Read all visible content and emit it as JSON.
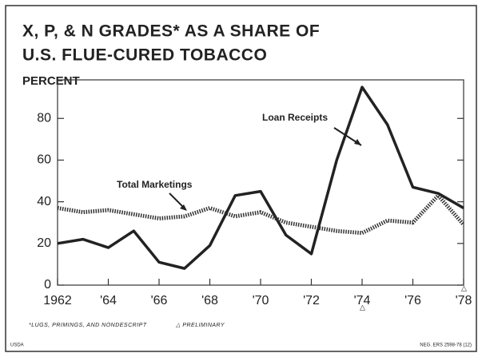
{
  "chart_data": {
    "type": "line",
    "title": [
      "X, P, & N GRADES* AS A SHARE OF",
      "U.S. FLUE-CURED TOBACCO"
    ],
    "y_label": "PERCENT",
    "annotations": [
      "Loan Receipts",
      "Total Marketings"
    ],
    "footnotes": [
      "*LUGS, PRIMINGS, AND NONDESCRIPT",
      "△ PRELIMINARY"
    ],
    "source": "USDA",
    "reference": "NEG. ERS 2598-78 (12)",
    "x": [
      1962,
      1963,
      1964,
      1965,
      1966,
      1967,
      1968,
      1969,
      1970,
      1971,
      1972,
      1973,
      1974,
      1975,
      1976,
      1977,
      1978
    ],
    "series": [
      {
        "name": "Loan Receipts",
        "color": "#222222",
        "style": "solid",
        "values": [
          20,
          22,
          18,
          26,
          11,
          8,
          19,
          43,
          45,
          24,
          15,
          60,
          95,
          77,
          47,
          44,
          37
        ]
      },
      {
        "name": "Total Marketings",
        "color": "#333333",
        "style": "dotted",
        "values": [
          37,
          35,
          36,
          34,
          32,
          33,
          37,
          33,
          35,
          30,
          28,
          26,
          25,
          31,
          30,
          43,
          29
        ]
      }
    ],
    "xlim": [
      1962,
      1978
    ],
    "xticks": [
      1962,
      {
        "value": 1964,
        "label": "'64"
      },
      {
        "value": 1966,
        "label": "'66"
      },
      {
        "value": 1968,
        "label": "'68"
      },
      {
        "value": 1970,
        "label": "'70"
      },
      {
        "value": 1972,
        "label": "'72"
      },
      {
        "value": 1974,
        "label": "'74"
      },
      {
        "value": 1976,
        "label": "'76"
      },
      {
        "value": 1978,
        "label": "'78"
      }
    ],
    "ylim": [
      0,
      98.5
    ],
    "yticks": [
      0,
      20,
      40,
      60,
      80
    ]
  }
}
